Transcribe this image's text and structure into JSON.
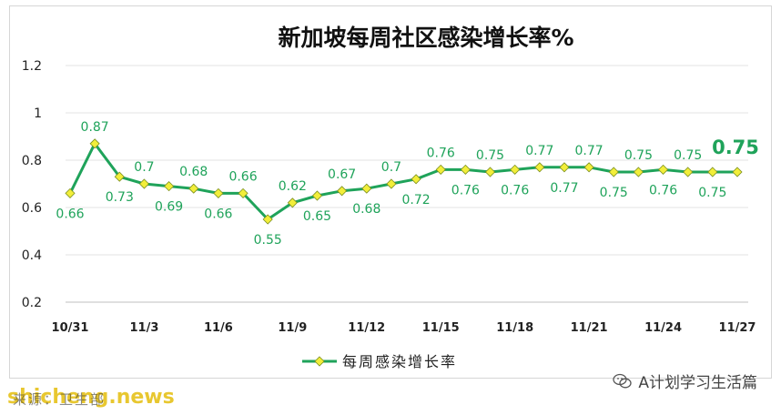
{
  "footer": {
    "source_label": "来源：卫生部",
    "watermark": "shicheng.news",
    "account_name": "A计划学习生活篇",
    "account_icon": "wechat-icon"
  },
  "chart_data": {
    "type": "line",
    "title": "新加坡每周社区感染增长率%",
    "xlabel": "",
    "ylabel": "",
    "ylim": [
      0.2,
      1.2
    ],
    "yticks": [
      "0.2",
      "0.4",
      "0.6",
      "0.8",
      "1",
      "1.2"
    ],
    "x": [
      "10/31",
      "11/1",
      "11/2",
      "11/3",
      "11/4",
      "11/5",
      "11/6",
      "11/7",
      "11/8",
      "11/9",
      "11/10",
      "11/11",
      "11/12",
      "11/13",
      "11/14",
      "11/15",
      "11/16",
      "11/17",
      "11/18",
      "11/19",
      "11/20",
      "11/21",
      "11/22",
      "11/23",
      "11/24",
      "11/25",
      "11/26",
      "11/27"
    ],
    "xtick_labels": [
      "10/31",
      "11/3",
      "11/6",
      "11/9",
      "11/12",
      "11/15",
      "11/18",
      "11/21",
      "11/24",
      "11/27"
    ],
    "grid": true,
    "legend": "bottom",
    "series": [
      {
        "name": "每周感染增长率",
        "color": "#1fa35a",
        "marker_color": "#f2ee3a",
        "values": [
          0.66,
          0.87,
          0.73,
          0.7,
          0.69,
          0.68,
          0.66,
          0.66,
          0.55,
          0.62,
          0.65,
          0.67,
          0.68,
          0.7,
          0.72,
          0.76,
          0.76,
          0.75,
          0.76,
          0.77,
          0.77,
          0.77,
          0.75,
          0.75,
          0.76,
          0.75,
          0.75,
          0.75
        ],
        "labels": [
          "0.66",
          "0.87",
          "0.73",
          "0.7",
          "0.69",
          "0.68",
          "0.66",
          "0.66",
          "0.55",
          "0.62",
          "0.65",
          "0.67",
          "0.68",
          "0.7",
          "0.72",
          "0.76",
          "0.76",
          "0.75",
          "0.76",
          "0.77",
          "0.77",
          "0.77",
          "0.75",
          "0.75",
          "0.76",
          "0.75",
          "0.75",
          "0.75"
        ],
        "label_positions": [
          "below",
          "above",
          "below",
          "above",
          "below",
          "above",
          "below",
          "above",
          "below",
          "above",
          "below",
          "above",
          "below",
          "above",
          "below",
          "above",
          "below",
          "above",
          "below",
          "above",
          "below",
          "above",
          "below",
          "above",
          "below",
          "above",
          "below",
          "above"
        ]
      }
    ],
    "highlight_label": "0.75"
  }
}
